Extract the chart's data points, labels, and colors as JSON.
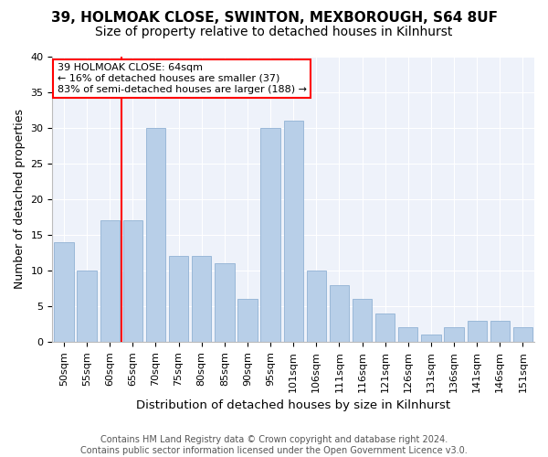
{
  "title1": "39, HOLMOAK CLOSE, SWINTON, MEXBOROUGH, S64 8UF",
  "title2": "Size of property relative to detached houses in Kilnhurst",
  "xlabel": "Distribution of detached houses by size in Kilnhurst",
  "ylabel": "Number of detached properties",
  "categories": [
    "50sqm",
    "55sqm",
    "60sqm",
    "65sqm",
    "70sqm",
    "75sqm",
    "80sqm",
    "85sqm",
    "90sqm",
    "95sqm",
    "101sqm",
    "106sqm",
    "111sqm",
    "116sqm",
    "121sqm",
    "126sqm",
    "131sqm",
    "136sqm",
    "141sqm",
    "146sqm",
    "151sqm"
  ],
  "values": [
    14,
    10,
    17,
    17,
    30,
    12,
    12,
    11,
    6,
    30,
    31,
    10,
    8,
    6,
    4,
    2,
    1,
    2,
    3,
    3,
    2
  ],
  "bar_color": "#b8cfe8",
  "bar_edge_color": "#9ab8d8",
  "vline_index": 2.5,
  "vline_color": "red",
  "annotation_text": "39 HOLMOAK CLOSE: 64sqm\n← 16% of detached houses are smaller (37)\n83% of semi-detached houses are larger (188) →",
  "annotation_box_color": "white",
  "annotation_box_edge_color": "red",
  "ylim": [
    0,
    40
  ],
  "yticks": [
    0,
    5,
    10,
    15,
    20,
    25,
    30,
    35,
    40
  ],
  "footer": "Contains HM Land Registry data © Crown copyright and database right 2024.\nContains public sector information licensed under the Open Government Licence v3.0.",
  "bg_color": "#eef2fa",
  "title1_fontsize": 11,
  "title2_fontsize": 10,
  "xlabel_fontsize": 9.5,
  "ylabel_fontsize": 9,
  "footer_fontsize": 7,
  "tick_fontsize": 8
}
